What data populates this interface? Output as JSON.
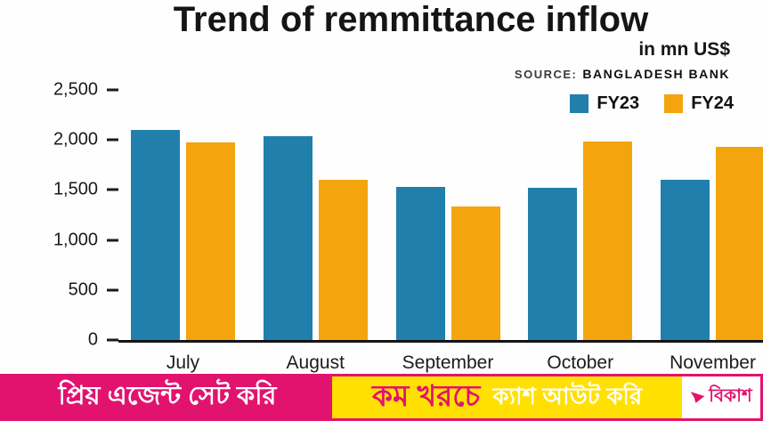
{
  "title": "Trend of remmittance inflow",
  "subtitle": "in mn US$",
  "source_label": "SOURCE:",
  "source_value": "BANGLADESH BANK",
  "chart_data": {
    "type": "bar",
    "title": "Trend of remmittance inflow",
    "ylabel": "in mn US$",
    "categories": [
      "July",
      "August",
      "September",
      "October",
      "November"
    ],
    "series": [
      {
        "name": "FY23",
        "color": "#2180ab",
        "values": [
          2100,
          2035,
          1530,
          1520,
          1600
        ]
      },
      {
        "name": "FY24",
        "color": "#f4a40c",
        "values": [
          1975,
          1600,
          1335,
          1980,
          1930
        ]
      }
    ],
    "ylim": [
      0,
      2500
    ],
    "yticks": [
      0,
      500,
      1000,
      1500,
      2000,
      2500
    ],
    "ytick_labels": [
      "0",
      "500",
      "1,000",
      "1,500",
      "2,000",
      "2,500"
    ],
    "grid": false,
    "legend_position": "top-right"
  },
  "banner": {
    "left_text": "প্রিয় এজেন্ট সেট করি",
    "middle_text_1": "কম খরচে",
    "middle_text_2": "ক্যাশ আউট করি",
    "brand": "বিকাশ",
    "colors": {
      "pink": "#e2136e",
      "yellow": "#ffe000",
      "white": "#ffffff"
    }
  }
}
